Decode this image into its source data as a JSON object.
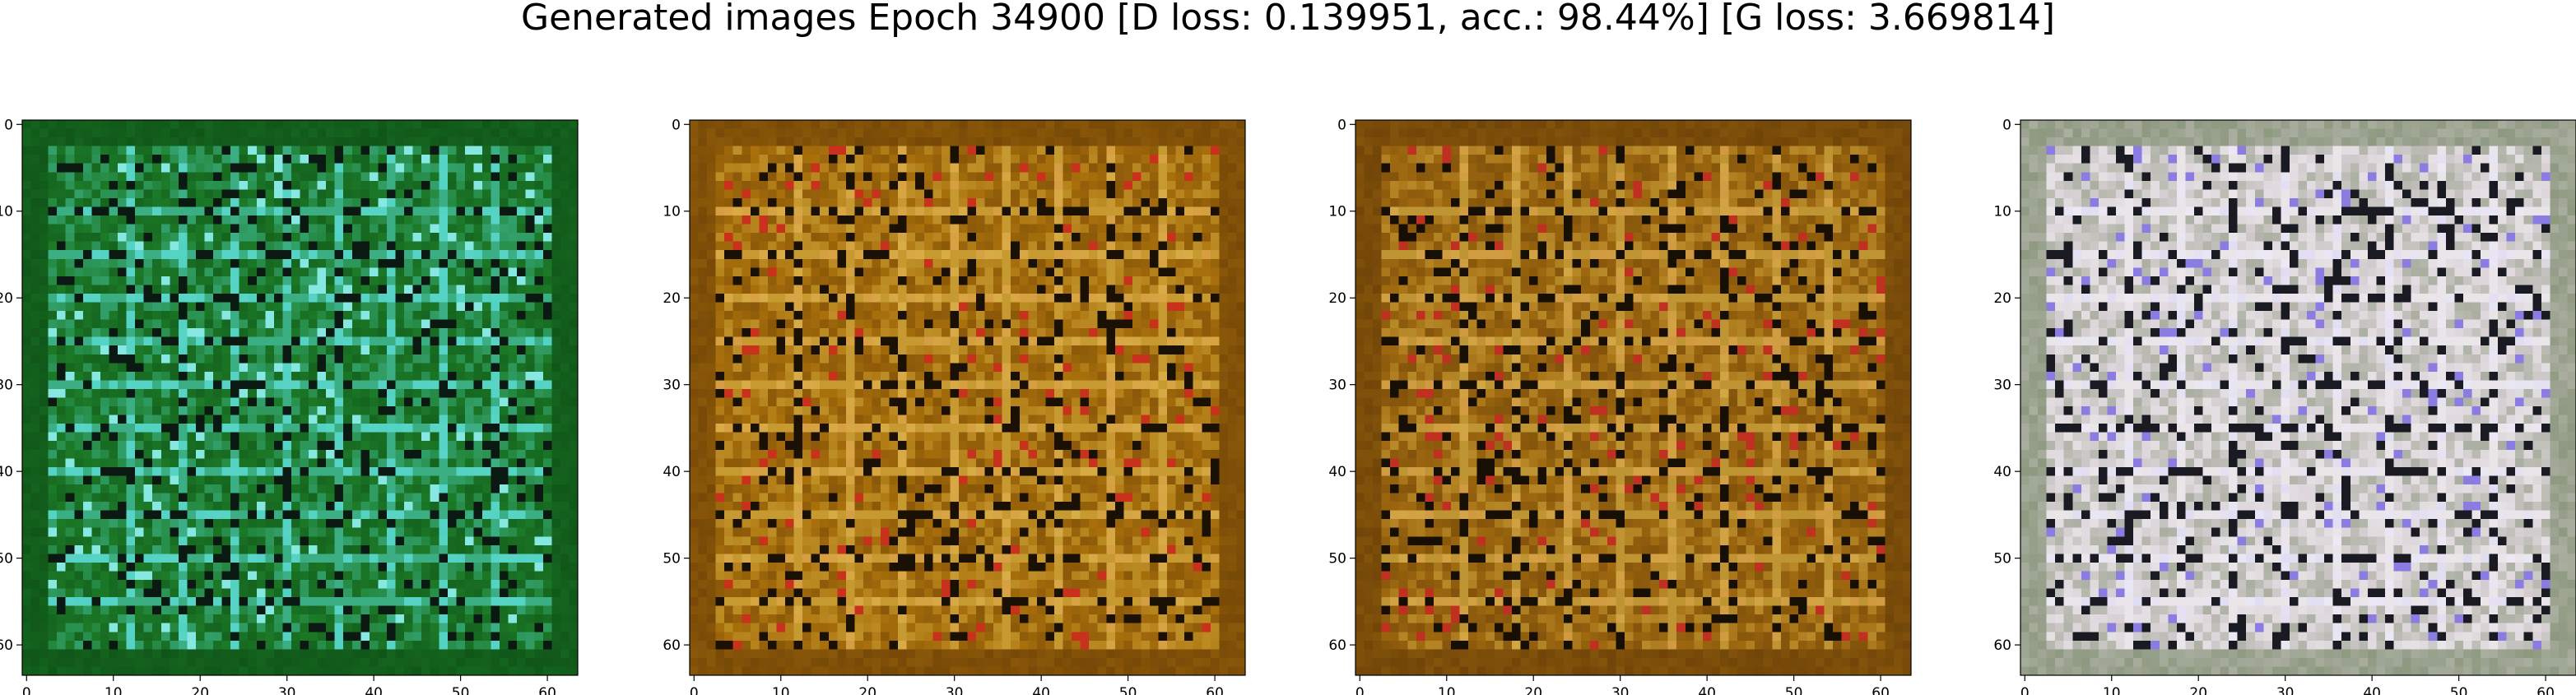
{
  "figure": {
    "title": "Generated images Epoch 34900 [D loss: 0.139951, acc.: 98.44%] [G loss: 3.669814]"
  },
  "chart_data": [
    {
      "type": "heatmap",
      "title": "",
      "xlabel": "",
      "ylabel": "",
      "xlim": [
        0,
        63
      ],
      "ylim": [
        63,
        0
      ],
      "x_ticks": [
        0,
        10,
        20,
        30,
        40,
        50,
        60
      ],
      "y_ticks": [
        0,
        10,
        20,
        30,
        40,
        50,
        60
      ],
      "grid": false,
      "palette": {
        "base": "#1c7a28",
        "dark": "#0d4d15",
        "light": "#4fd0c0",
        "accent": "#86e8e0",
        "black": "#0a1a12"
      }
    },
    {
      "type": "heatmap",
      "title": "",
      "xlabel": "",
      "ylabel": "",
      "xlim": [
        0,
        63
      ],
      "ylim": [
        63,
        0
      ],
      "x_ticks": [
        0,
        10,
        20,
        30,
        40,
        50,
        60
      ],
      "y_ticks": [
        0,
        10,
        20,
        30,
        40,
        50,
        60
      ],
      "grid": false,
      "palette": {
        "base": "#a9700c",
        "dark": "#6a3f06",
        "light": "#d9b64a",
        "accent": "#c8321c",
        "black": "#1a1004"
      }
    },
    {
      "type": "heatmap",
      "title": "",
      "xlabel": "",
      "ylabel": "",
      "xlim": [
        0,
        63
      ],
      "ylim": [
        63,
        0
      ],
      "x_ticks": [
        0,
        10,
        20,
        30,
        40,
        50,
        60
      ],
      "y_ticks": [
        0,
        10,
        20,
        30,
        40,
        50,
        60
      ],
      "grid": false,
      "palette": {
        "base": "#a06a10",
        "dark": "#653c06",
        "light": "#d4b048",
        "accent": "#c03020",
        "black": "#180f04"
      }
    },
    {
      "type": "heatmap",
      "title": "",
      "xlabel": "",
      "ylabel": "",
      "xlim": [
        0,
        63
      ],
      "ylim": [
        63,
        0
      ],
      "x_ticks": [
        0,
        10,
        20,
        30,
        40,
        50,
        60
      ],
      "y_ticks": [
        0,
        10,
        20,
        30,
        40,
        50,
        60
      ],
      "grid": false,
      "palette": {
        "base": "#d9d2d6",
        "dark": "#7a8a6a",
        "light": "#f4f2f6",
        "accent": "#8a7ce0",
        "black": "#1a1a22"
      }
    }
  ]
}
